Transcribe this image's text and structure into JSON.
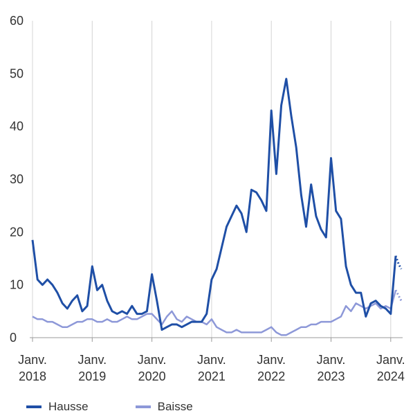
{
  "chart_data": {
    "type": "line",
    "ylim": [
      0,
      60
    ],
    "yticks": [
      "0",
      "10",
      "20",
      "30",
      "40",
      "50",
      "60"
    ],
    "x_tick_labels": [
      [
        "Janv.",
        "2018"
      ],
      [
        "Janv.",
        "2019"
      ],
      [
        "Janv.",
        "2020"
      ],
      [
        "Janv.",
        "2021"
      ],
      [
        "Janv.",
        "2022"
      ],
      [
        "Janv.",
        "2023"
      ],
      [
        "Janv.",
        "2024"
      ]
    ],
    "grid": "vertical-at-year-ticks",
    "legend_position": "bottom-left",
    "series": [
      {
        "name": "Hausse",
        "color": "#1f4fa6",
        "values": [
          18.5,
          11,
          10,
          11,
          10,
          8.5,
          6.5,
          5.5,
          7,
          8,
          5,
          6,
          13.5,
          9,
          10,
          7,
          5,
          4.5,
          5,
          4.5,
          6,
          4.5,
          4.5,
          5,
          12,
          7,
          1.5,
          2,
          2.5,
          2.5,
          2,
          2.5,
          3,
          3,
          3,
          4.5,
          11,
          13,
          17,
          21,
          23,
          25,
          23.5,
          20,
          28,
          27.5,
          26,
          24,
          43,
          31,
          44,
          49,
          42,
          36,
          27,
          21,
          29,
          23,
          20.5,
          19,
          34,
          24,
          22.5,
          13.5,
          10,
          8.5,
          8.5,
          4,
          6.5,
          7,
          6,
          5.5,
          4.5,
          15.5
        ],
        "dotted_tail": [
          15.5,
          14,
          13
        ]
      },
      {
        "name": "Baisse",
        "color": "#8d98d8",
        "values": [
          4,
          3.5,
          3.5,
          3,
          3,
          2.5,
          2,
          2,
          2.5,
          3,
          3,
          3.5,
          3.5,
          3,
          3,
          3.5,
          3,
          3,
          3.5,
          4,
          3.5,
          3.5,
          4,
          4.5,
          4.5,
          3.5,
          2.5,
          4,
          5,
          3.5,
          3,
          4,
          3.5,
          3,
          3,
          2.5,
          3.5,
          2,
          1.5,
          1,
          1,
          1.5,
          1,
          1,
          1,
          1,
          1,
          1.5,
          2,
          1,
          0.5,
          0.5,
          1,
          1.5,
          2,
          2,
          2.5,
          2.5,
          3,
          3,
          3,
          3.5,
          4,
          6,
          5,
          6.5,
          6,
          5.5,
          6,
          6.5,
          5.5,
          6,
          5.5,
          9
        ],
        "dotted_tail": [
          9,
          8,
          7
        ]
      }
    ]
  }
}
